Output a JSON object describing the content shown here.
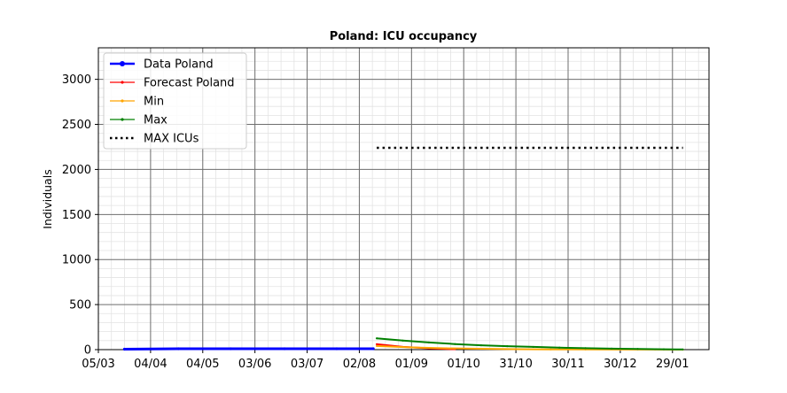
{
  "chart_data": {
    "type": "line",
    "title": "Poland: ICU occupancy",
    "xlabel": "",
    "ylabel": "Individuals",
    "ylim": [
      0,
      3350
    ],
    "xlim": [
      "2020-03-05",
      "2021-02-19"
    ],
    "x_tick_labels": [
      "05/03",
      "04/04",
      "04/05",
      "03/06",
      "03/07",
      "02/08",
      "01/09",
      "01/10",
      "31/10",
      "30/11",
      "30/12",
      "29/01"
    ],
    "x_tick_dates": [
      "2020-03-05",
      "2020-04-04",
      "2020-05-04",
      "2020-06-03",
      "2020-07-03",
      "2020-08-02",
      "2020-09-01",
      "2020-10-01",
      "2020-10-31",
      "2020-11-30",
      "2020-12-30",
      "2021-01-29"
    ],
    "y_ticks": [
      0,
      500,
      1000,
      1500,
      2000,
      2500,
      3000
    ],
    "grid": true,
    "legend": "top-left",
    "series": [
      {
        "name": "Data Poland",
        "color": "#0000ff",
        "style": "solid-markers",
        "x": [
          "2020-03-20",
          "2020-04-20",
          "2020-05-20",
          "2020-06-20",
          "2020-07-20",
          "2020-08-10"
        ],
        "values": [
          5,
          10,
          10,
          10,
          10,
          10
        ]
      },
      {
        "name": "Forecast Poland",
        "color": "#ff0000",
        "style": "solid-markers",
        "x": [
          "2020-08-12",
          "2020-08-27",
          "2020-09-11",
          "2020-09-26"
        ],
        "values": [
          60,
          30,
          15,
          5
        ]
      },
      {
        "name": "Min",
        "color": "#ffa500",
        "style": "solid-markers",
        "x": [
          "2020-08-12",
          "2020-09-01",
          "2020-09-21",
          "2020-10-11",
          "2020-10-31",
          "2020-11-20",
          "2020-12-10",
          "2020-12-30",
          "2021-01-19",
          "2021-02-04"
        ],
        "values": [
          40,
          25,
          15,
          10,
          5,
          3,
          2,
          1,
          1,
          0
        ]
      },
      {
        "name": "Max",
        "color": "#008000",
        "style": "solid-markers",
        "x": [
          "2020-08-12",
          "2020-08-27",
          "2020-09-11",
          "2020-09-26",
          "2020-10-11",
          "2020-10-26",
          "2020-11-10",
          "2020-11-25",
          "2020-12-10",
          "2020-12-25",
          "2021-01-09",
          "2021-01-24",
          "2021-02-04"
        ],
        "values": [
          125,
          100,
          80,
          62,
          48,
          38,
          30,
          22,
          16,
          11,
          7,
          4,
          2
        ]
      },
      {
        "name": "MAX ICUs",
        "color": "#000000",
        "style": "dotted",
        "x": [
          "2020-08-12",
          "2021-02-04"
        ],
        "values": [
          2240,
          2240
        ]
      }
    ]
  }
}
